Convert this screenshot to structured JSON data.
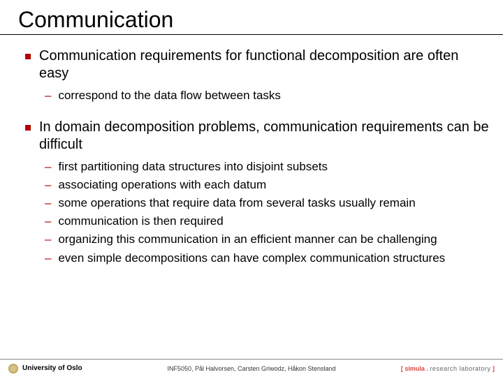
{
  "title": "Communication",
  "bullets": [
    {
      "text": "Communication requirements for functional decomposition are often easy",
      "subs": [
        "correspond to the data flow between tasks"
      ]
    },
    {
      "text": "In domain decomposition problems, communication requirements can be difficult",
      "subs": [
        "first partitioning data structures into disjoint subsets",
        "associating operations with each datum",
        "some operations that require data from several tasks usually remain",
        "communication is then required",
        "organizing this communication in an efficient manner can be challenging",
        "even simple decompositions can have complex communication structures"
      ]
    }
  ],
  "footer": {
    "left": "University of Oslo",
    "center": "INF5050, Pål Halvorsen, Carsten Griwodz, Håkon Stensland",
    "right_simula": "simula",
    "right_rl": "research laboratory"
  },
  "colors": {
    "accent": "#b30000",
    "simula": "#d44"
  }
}
